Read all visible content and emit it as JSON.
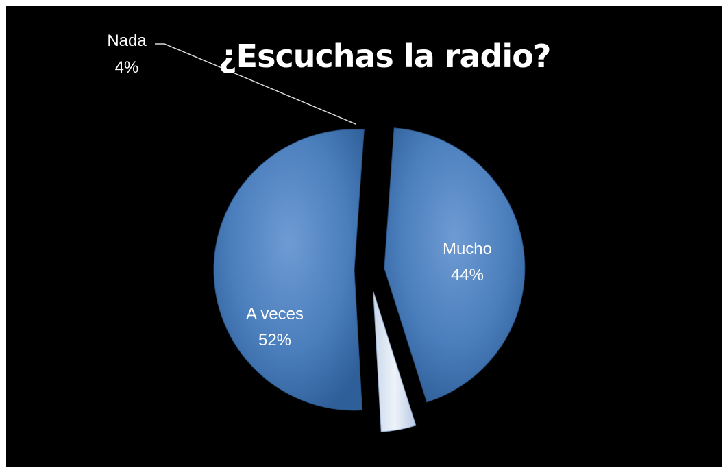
{
  "chart_data": {
    "type": "pie",
    "title": "¿Escuchas la radio?",
    "categories": [
      "Mucho",
      "Nada",
      "A veces"
    ],
    "values": [
      44,
      4,
      52
    ],
    "labels": [
      "44%",
      "4%",
      "52%"
    ],
    "colors": {
      "Mucho": "#4f81bd",
      "Nada": "#dbe5f1",
      "A veces": "#4f81bd"
    },
    "background": "#000000",
    "legend": "none",
    "exploded": true
  }
}
